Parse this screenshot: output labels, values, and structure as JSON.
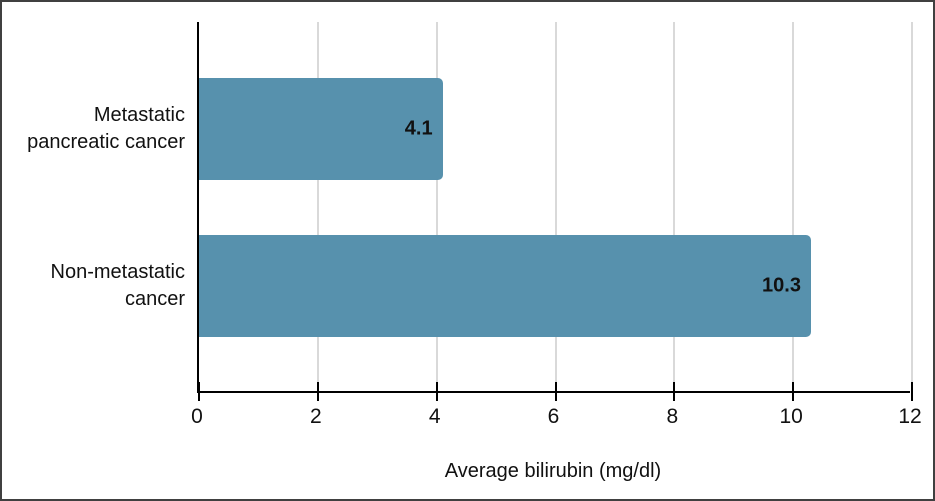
{
  "chart_data": {
    "type": "bar",
    "orientation": "horizontal",
    "title": "",
    "xlabel": "Average bilirubin (mg/dl)",
    "ylabel": "",
    "categories": [
      "Metastatic\npancreatic cancer",
      "Non-metastatic\ncancer"
    ],
    "values": [
      4.1,
      10.3
    ],
    "data_labels": [
      "4.1",
      "10.3"
    ],
    "x_ticks": [
      "0",
      "2",
      "4",
      "6",
      "8",
      "10",
      "12"
    ],
    "xlim": [
      0,
      12
    ],
    "grid": "vertical",
    "legend": "none",
    "colors": {
      "bar_fill": "#5791ad",
      "gridline": "#d9d9d9",
      "axis": "#000000",
      "text": "#111111",
      "frame_border": "#404040"
    }
  }
}
